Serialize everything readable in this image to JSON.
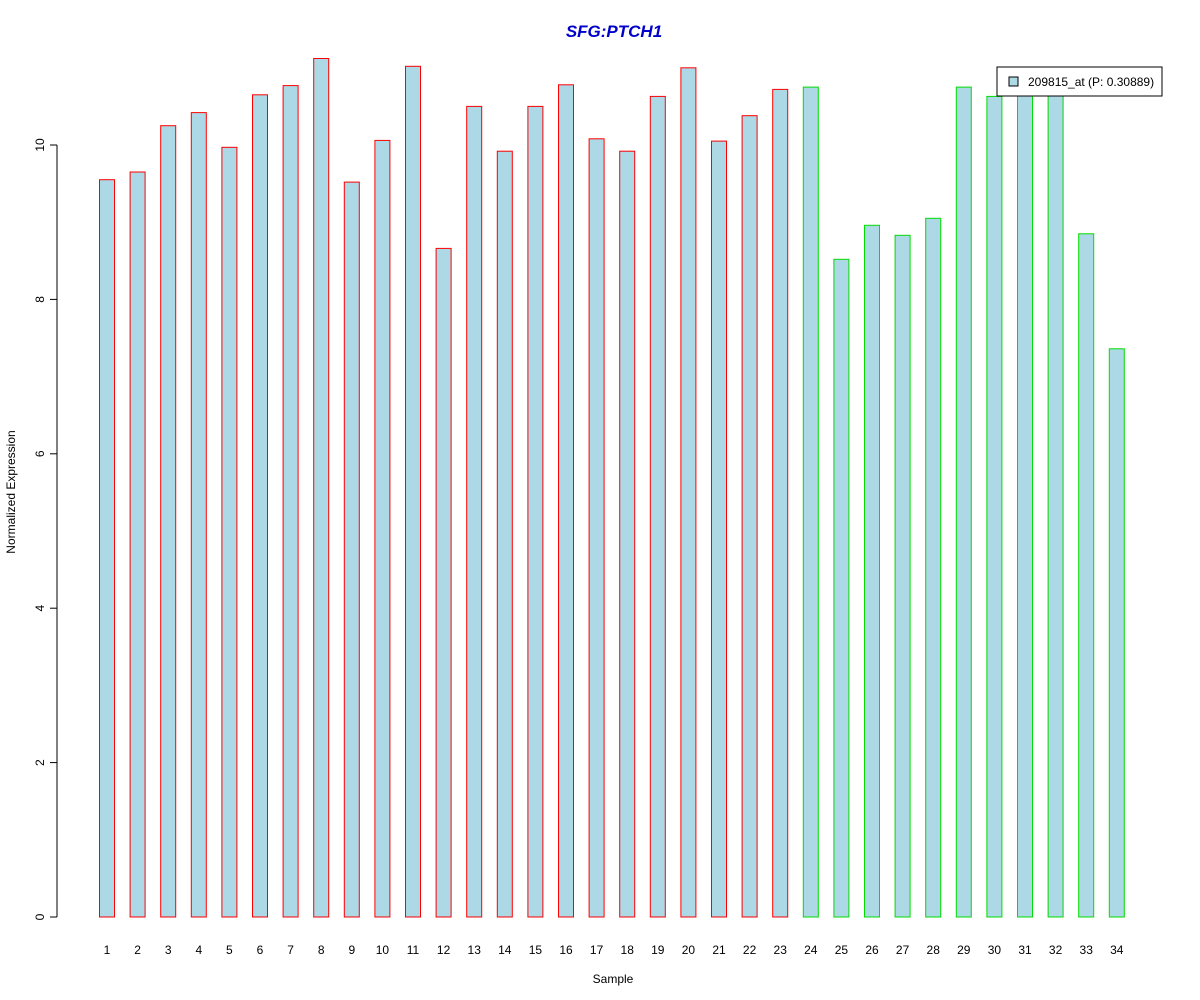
{
  "chart_data": {
    "type": "bar",
    "title": "SFG:PTCH1",
    "xlabel": "Sample",
    "ylabel": "Normalized Expression",
    "ylim": [
      0,
      11.1
    ],
    "yticks": [
      0,
      2,
      4,
      6,
      8,
      10
    ],
    "categories": [
      "1",
      "2",
      "3",
      "4",
      "5",
      "6",
      "7",
      "8",
      "9",
      "10",
      "11",
      "12",
      "13",
      "14",
      "15",
      "16",
      "17",
      "18",
      "19",
      "20",
      "21",
      "22",
      "23",
      "24",
      "25",
      "26",
      "27",
      "28",
      "29",
      "30",
      "31",
      "32",
      "33",
      "34"
    ],
    "series": [
      {
        "name": "209815_at (P: 0.30889)",
        "values": [
          9.55,
          9.65,
          10.25,
          10.42,
          9.97,
          10.65,
          10.77,
          11.12,
          9.52,
          10.06,
          11.02,
          8.66,
          10.5,
          9.92,
          10.5,
          10.78,
          10.08,
          9.92,
          10.63,
          11.0,
          10.05,
          10.38,
          10.72,
          10.75,
          8.52,
          8.96,
          8.83,
          9.05,
          10.75,
          10.63,
          10.7,
          10.7,
          8.85,
          7.36
        ]
      }
    ],
    "groups": [
      "red",
      "red",
      "red",
      "red",
      "red",
      "red",
      "red",
      "red",
      "red",
      "red",
      "red",
      "red",
      "red",
      "red",
      "red",
      "red",
      "red",
      "red",
      "red",
      "red",
      "red",
      "red",
      "red",
      "green",
      "green",
      "green",
      "green",
      "green",
      "green",
      "green",
      "green",
      "green",
      "green",
      "green"
    ],
    "grid": false,
    "legend_position": "top-right"
  },
  "colors": {
    "title": "#0000cc",
    "bar_fill": "#add8e6",
    "group_red": "#ff0000",
    "group_green": "#00dd00",
    "axis": "#000000"
  }
}
